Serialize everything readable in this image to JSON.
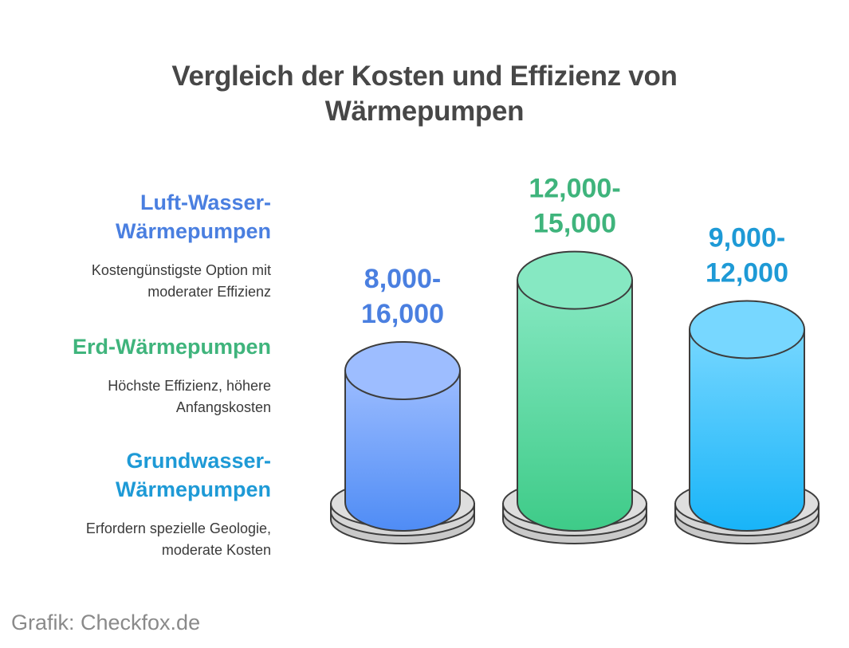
{
  "title_lines": [
    "Vergleich der Kosten und Effizienz von",
    "Wärmepumpen"
  ],
  "legend": [
    {
      "name_lines": [
        "Luft-Wasser-",
        "Wärmepumpen"
      ],
      "desc_lines": [
        "Kostengünstigste Option mit",
        "moderater Effizienz"
      ],
      "color": "#4a7fe0"
    },
    {
      "name_lines": [
        "Erd-Wärmepumpen"
      ],
      "desc_lines": [
        "Höchste Effizienz, höhere",
        "Anfangskosten"
      ],
      "color": "#3fb47c"
    },
    {
      "name_lines": [
        "Grundwasser-",
        "Wärmepumpen"
      ],
      "desc_lines": [
        "Erfordern spezielle Geologie,",
        "moderate Kosten"
      ],
      "color": "#1e9ad6"
    }
  ],
  "credit": "Grafik: Checkfox.de",
  "chart_data": {
    "type": "bar",
    "categories": [
      "Luft-Wasser-Wärmepumpen",
      "Erd-Wärmepumpen",
      "Grundwasser-Wärmepumpen"
    ],
    "series": [
      {
        "values": [
          8000,
          13500,
          10500
        ],
        "label_lines": [
          [
            "8,000-",
            "16,000"
          ],
          [
            "12,000-",
            "15,000"
          ],
          [
            "9,000-",
            "12,000"
          ]
        ],
        "colors_top": [
          "#9dbdff",
          "#86e8c2",
          "#77d7ff"
        ],
        "colors_bottom": [
          "#4f8cf5",
          "#3ecb88",
          "#18b4f8"
        ],
        "label_colors": [
          "#4a7fe0",
          "#3fb47c",
          "#1e9ad6"
        ]
      }
    ],
    "title": "",
    "xlabel": "",
    "ylabel": "",
    "ylim": [
      0,
      16000
    ]
  }
}
